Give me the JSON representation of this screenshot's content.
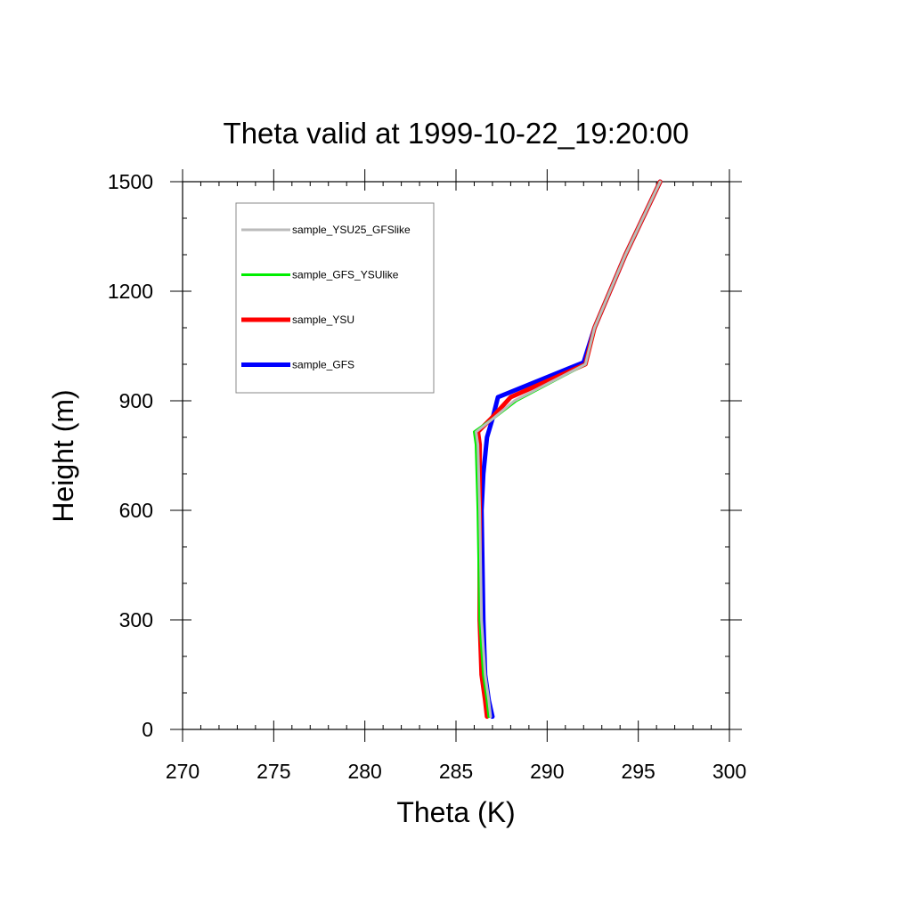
{
  "chart_data": {
    "type": "line",
    "title": "Theta valid at 1999-10-22_19:20:00",
    "xlabel": "Theta (K)",
    "ylabel": "Height (m)",
    "xlim": [
      270,
      300
    ],
    "ylim": [
      0,
      1500
    ],
    "x_ticks": [
      270,
      275,
      280,
      285,
      290,
      295,
      300
    ],
    "y_ticks": [
      0,
      300,
      600,
      900,
      1200,
      1500
    ],
    "grid": false,
    "legend_position": "top-left",
    "series": [
      {
        "name": "sample_YSU25_GFSlike",
        "color": "#bbbbbb",
        "width": 3,
        "points": [
          [
            286.9,
            35
          ],
          [
            286.8,
            80
          ],
          [
            286.6,
            150
          ],
          [
            286.4,
            300
          ],
          [
            286.3,
            600
          ],
          [
            286.2,
            780
          ],
          [
            286.1,
            815
          ],
          [
            287.0,
            850
          ],
          [
            288.2,
            900
          ],
          [
            292.1,
            1000
          ],
          [
            292.6,
            1100
          ],
          [
            294.3,
            1300
          ],
          [
            296.2,
            1500
          ]
        ]
      },
      {
        "name": "sample_GFS_YSUlike",
        "color": "#00ee00",
        "width": 3,
        "points": [
          [
            286.8,
            35
          ],
          [
            286.7,
            80
          ],
          [
            286.5,
            150
          ],
          [
            286.3,
            300
          ],
          [
            286.2,
            600
          ],
          [
            286.1,
            780
          ],
          [
            286.0,
            815
          ],
          [
            287.0,
            850
          ],
          [
            288.3,
            900
          ],
          [
            292.1,
            1000
          ],
          [
            292.6,
            1100
          ],
          [
            294.3,
            1300
          ],
          [
            296.2,
            1500
          ]
        ]
      },
      {
        "name": "sample_YSU",
        "color": "#ff0000",
        "width": 5,
        "points": [
          [
            286.7,
            35
          ],
          [
            286.6,
            80
          ],
          [
            286.4,
            150
          ],
          [
            286.3,
            300
          ],
          [
            286.3,
            600
          ],
          [
            286.3,
            780
          ],
          [
            286.2,
            815
          ],
          [
            286.9,
            850
          ],
          [
            288.0,
            910
          ],
          [
            292.1,
            1000
          ],
          [
            292.6,
            1100
          ],
          [
            294.3,
            1300
          ],
          [
            296.2,
            1500
          ]
        ]
      },
      {
        "name": "sample_GFS",
        "color": "#0000ff",
        "width": 5,
        "points": [
          [
            287.0,
            35
          ],
          [
            286.8,
            80
          ],
          [
            286.6,
            150
          ],
          [
            286.5,
            300
          ],
          [
            286.4,
            600
          ],
          [
            286.5,
            700
          ],
          [
            286.7,
            800
          ],
          [
            287.0,
            850
          ],
          [
            287.3,
            910
          ],
          [
            292.0,
            1005
          ],
          [
            292.6,
            1100
          ],
          [
            294.3,
            1300
          ],
          [
            296.2,
            1500
          ]
        ]
      }
    ]
  }
}
